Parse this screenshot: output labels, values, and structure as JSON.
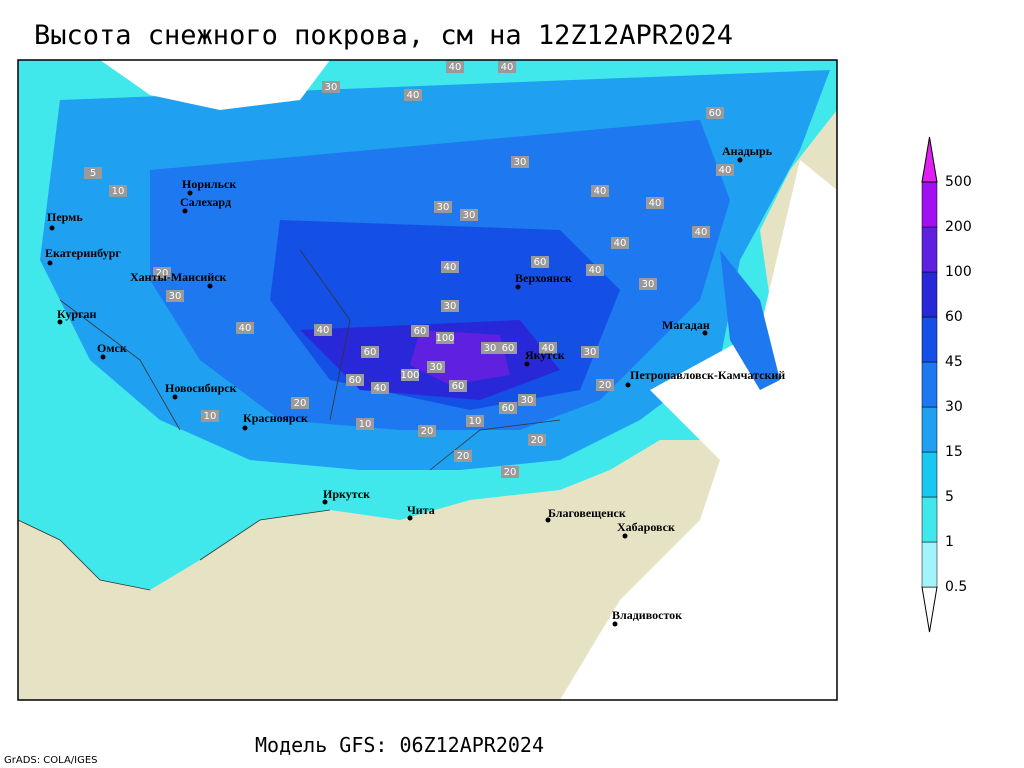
{
  "title": "Высота снежного покрова, см на 12Z12APR2024",
  "footer": "Модель GFS: 06Z12APR2024",
  "credit": "GrADS: COLA/IGES",
  "legend": {
    "levels": [
      0.5,
      1,
      5,
      15,
      30,
      45,
      60,
      100,
      200,
      500
    ],
    "colors": [
      "#ffffff",
      "#a0f4fa",
      "#40e8ec",
      "#18c8f0",
      "#20a0f0",
      "#1e78f0",
      "#1450e6",
      "#2828d8",
      "#6020e0",
      "#a010f0",
      "#e020f0"
    ]
  },
  "cities": [
    "Пермь",
    "Екатеринбург",
    "Ханты-Мансийск",
    "Курган",
    "Омск",
    "Новосибирск",
    "Красноярск",
    "Иркутск",
    "Чита",
    "Благовещенск",
    "Хабаровск",
    "Владивосток",
    "Петропавловск-Камчатский",
    "Магадан",
    "Анадырь",
    "Верхоянск",
    "Якутск",
    "Норильск",
    "Салехард"
  ],
  "contour_labels": [
    40,
    40,
    40,
    30,
    30,
    30,
    30,
    40,
    40,
    40,
    40,
    60,
    40,
    40,
    30,
    30,
    40,
    60,
    100,
    30,
    60,
    40,
    30,
    60,
    100,
    30,
    60,
    40,
    60,
    60,
    30,
    20,
    30,
    20,
    40,
    10,
    20,
    10,
    20,
    20,
    10,
    20,
    20,
    5,
    10,
    40,
    60
  ]
}
